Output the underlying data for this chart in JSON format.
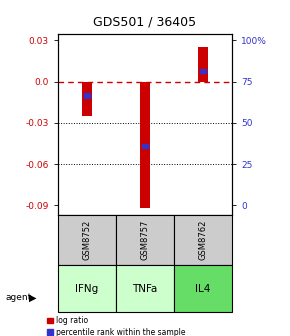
{
  "title": "GDS501 / 36405",
  "samples": [
    "GSM8752",
    "GSM8757",
    "GSM8762"
  ],
  "agents": [
    "IFNg",
    "TNFa",
    "IL4"
  ],
  "log_ratios": [
    -0.025,
    -0.092,
    0.025
  ],
  "percentile_values": [
    -0.01,
    -0.047,
    0.008
  ],
  "bar_color": "#cc0000",
  "blue_color": "#3333cc",
  "ylim": [
    -0.097,
    0.035
  ],
  "yticks_left": [
    0.03,
    0.0,
    -0.03,
    -0.06,
    -0.09
  ],
  "yticks_right_labels": [
    "100%",
    "75",
    "50",
    "25",
    "0"
  ],
  "yticks_right_vals": [
    0.03,
    0.0,
    -0.03,
    -0.06,
    -0.09
  ],
  "sample_color": "#cccccc",
  "agent_colors": [
    "#ccffcc",
    "#ccffcc",
    "#66dd66"
  ],
  "zero_line_color": "#cc0000"
}
